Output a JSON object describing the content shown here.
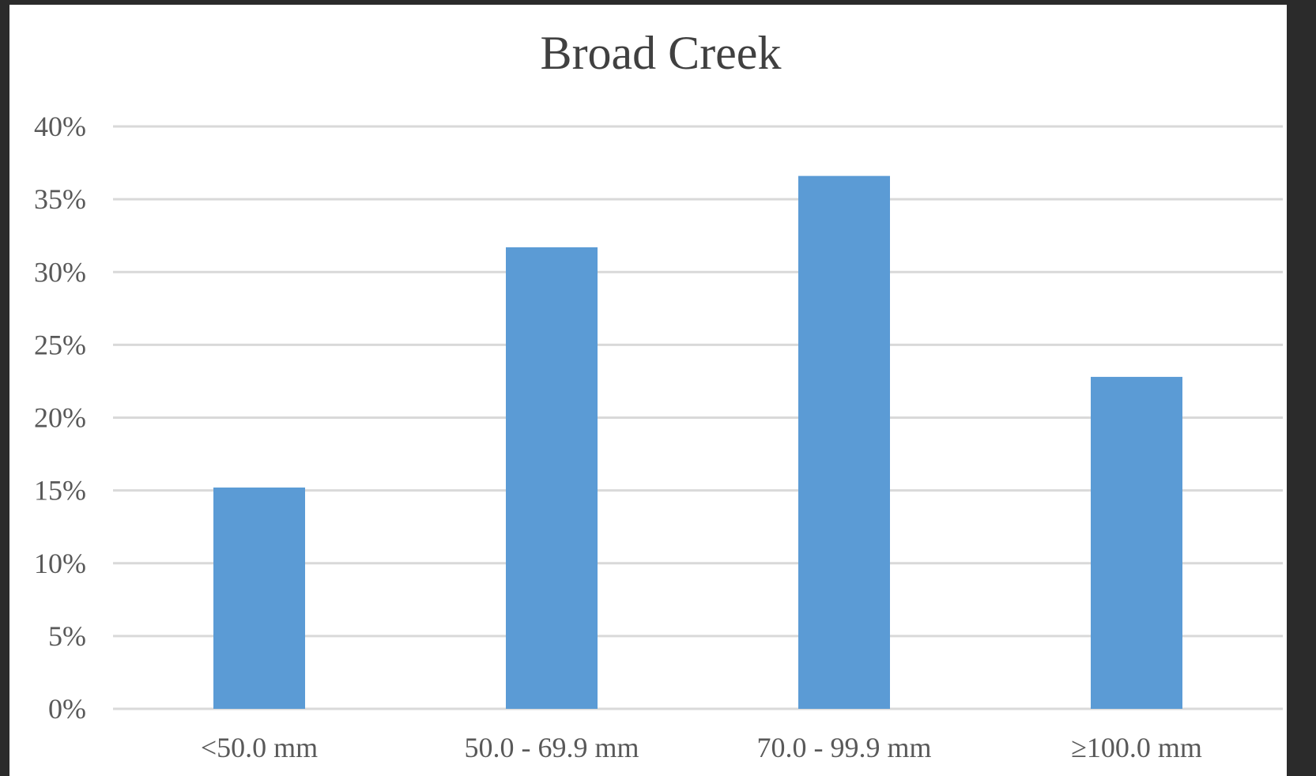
{
  "chart_data": {
    "type": "bar",
    "title": "Broad Creek",
    "xlabel": "",
    "ylabel": "",
    "categories": [
      "<50.0 mm",
      "50.0 - 69.9 mm",
      "70.0 - 99.9 mm",
      "≥100.0 mm"
    ],
    "values": [
      15.2,
      31.7,
      36.6,
      22.8
    ],
    "ylim": [
      0,
      40
    ],
    "yticks": [
      "0%",
      "5%",
      "10%",
      "15%",
      "20%",
      "25%",
      "30%",
      "35%",
      "40%"
    ],
    "grid": true,
    "legend": "none",
    "bar_color": "#5b9bd5"
  }
}
